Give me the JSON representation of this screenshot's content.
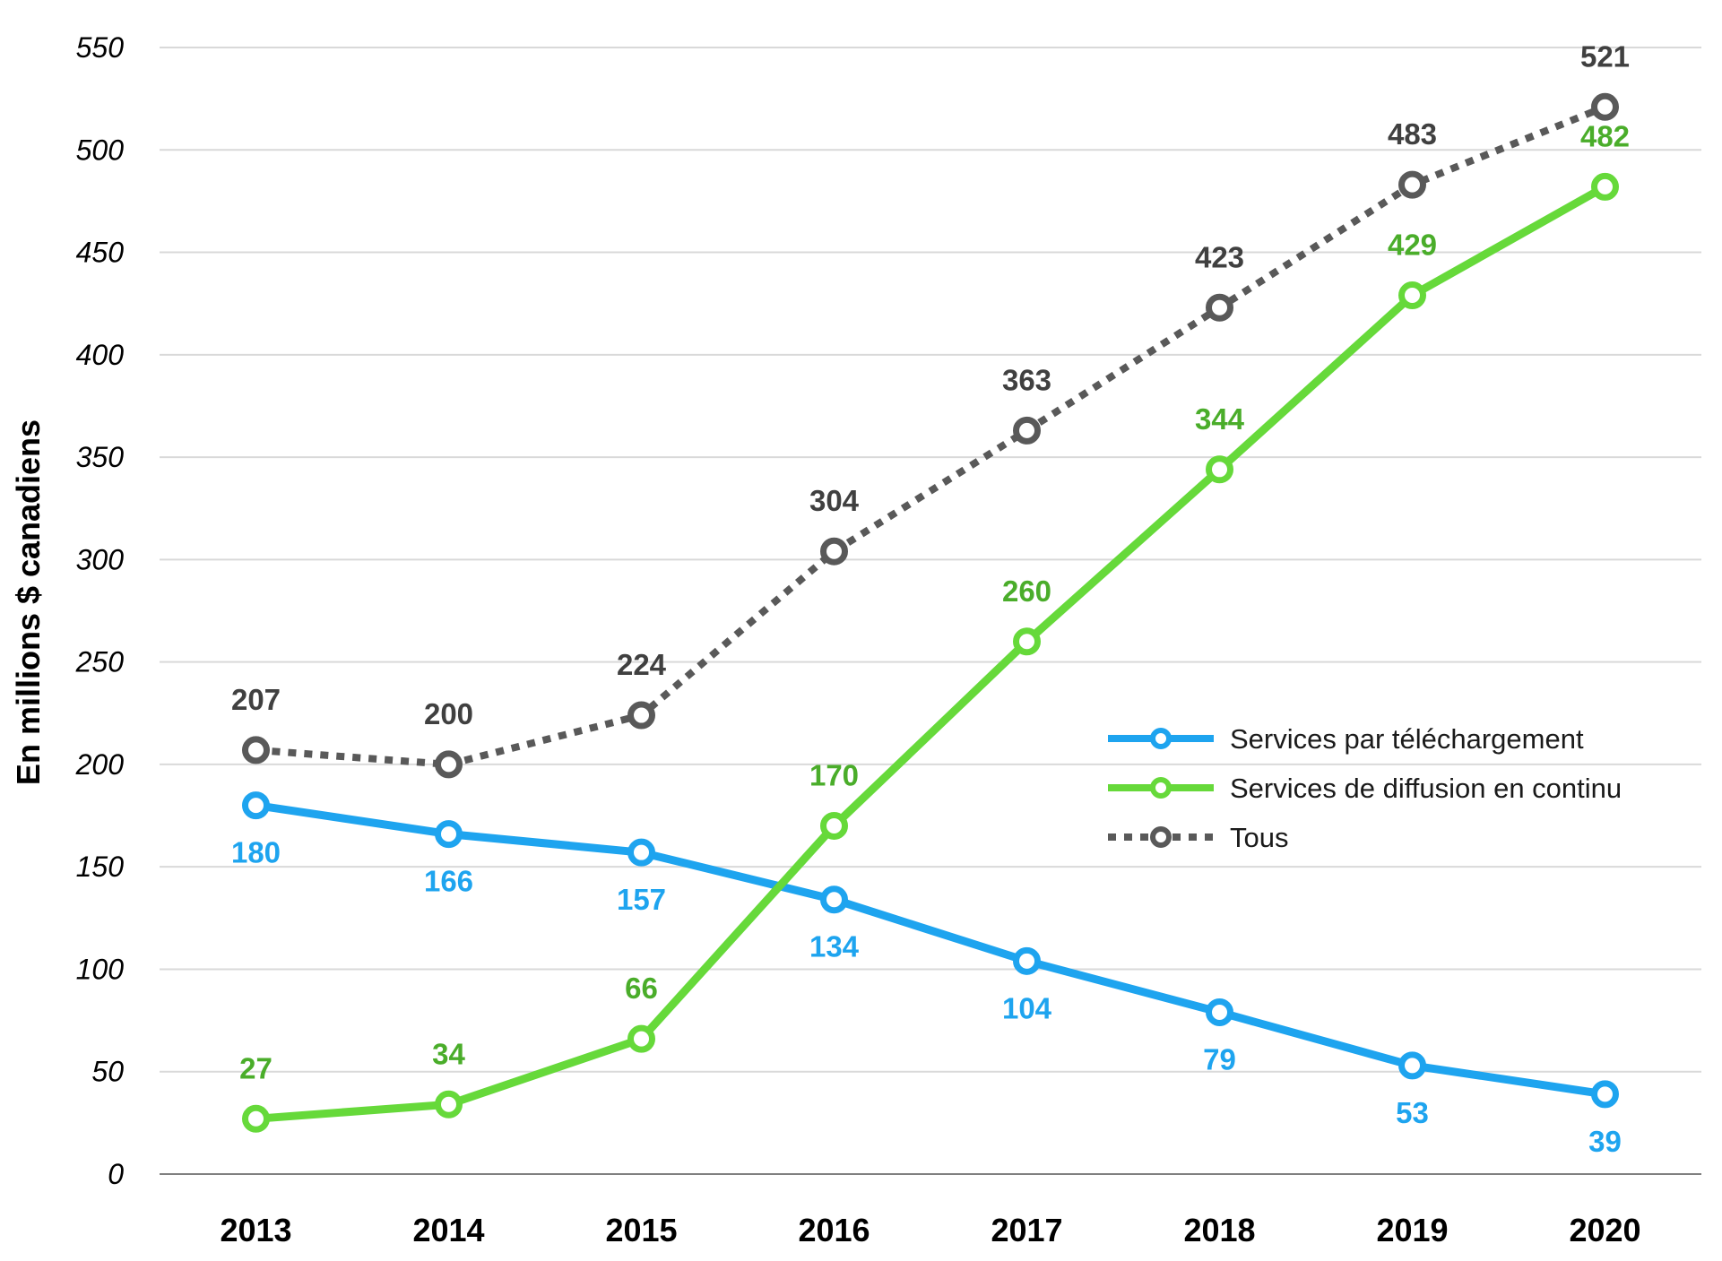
{
  "chart_data": {
    "type": "line",
    "title": "",
    "xlabel": "",
    "ylabel": "En millions $ canadiens",
    "ylim": [
      0,
      550
    ],
    "yticks": [
      0,
      50,
      100,
      150,
      200,
      250,
      300,
      350,
      400,
      450,
      500,
      550
    ],
    "grid": true,
    "legend_position": "right-middle",
    "categories": [
      "2013",
      "2014",
      "2015",
      "2016",
      "2017",
      "2018",
      "2019",
      "2020"
    ],
    "series": [
      {
        "name": "Services par téléchargement",
        "values": [
          180,
          166,
          157,
          134,
          104,
          79,
          53,
          39
        ],
        "color": "#1ea4ef",
        "label_color": "#1ea4ef",
        "line_style": "solid",
        "label_position": "below"
      },
      {
        "name": "Services de diffusion en continu",
        "values": [
          27,
          34,
          66,
          170,
          260,
          344,
          429,
          482
        ],
        "color": "#66d93a",
        "label_color": "#4aad2a",
        "line_style": "solid",
        "label_position": "above"
      },
      {
        "name": "Tous",
        "values": [
          207,
          200,
          224,
          304,
          363,
          423,
          483,
          521
        ],
        "color": "#595959",
        "label_color": "#404040",
        "line_style": "dotted",
        "label_position": "above"
      }
    ]
  }
}
